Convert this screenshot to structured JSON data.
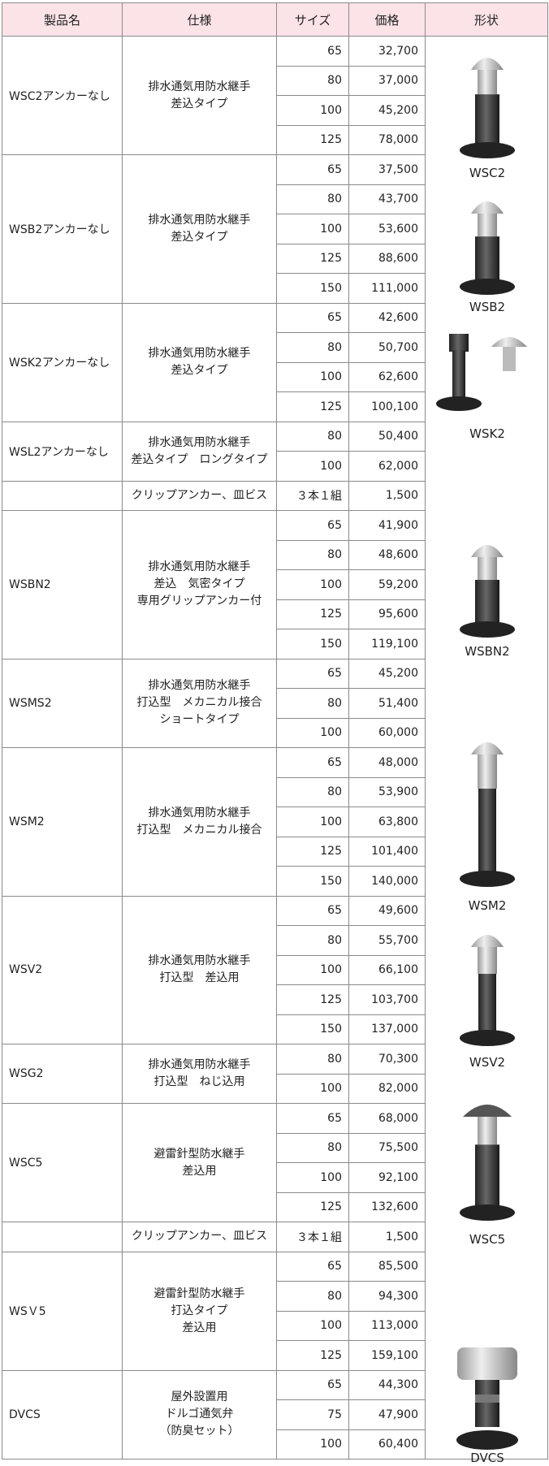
{
  "header": [
    "製品名",
    "仕様",
    "サイズ",
    "価格",
    "形状"
  ],
  "groups": [
    {
      "name": "WSC2アンカーなし",
      "spec": [
        "排水通気用防水継手",
        "差込タイプ"
      ],
      "rows": [
        [
          "65",
          "32,700"
        ],
        [
          "80",
          "37,000"
        ],
        [
          "100",
          "45,200"
        ],
        [
          "125",
          "78,000"
        ]
      ]
    },
    {
      "name": "WSB2アンカーなし",
      "spec": [
        "排水通気用防水継手",
        "差込タイプ"
      ],
      "rows": [
        [
          "65",
          "37,500"
        ],
        [
          "80",
          "43,700"
        ],
        [
          "100",
          "53,600"
        ],
        [
          "125",
          "88,600"
        ],
        [
          "150",
          "111,000"
        ]
      ]
    },
    {
      "name": "WSK2アンカーなし",
      "spec": [
        "排水通気用防水継手",
        "差込タイプ"
      ],
      "rows": [
        [
          "65",
          "42,600"
        ],
        [
          "80",
          "50,700"
        ],
        [
          "100",
          "62,600"
        ],
        [
          "125",
          "100,100"
        ]
      ]
    },
    {
      "name": "WSL2アンカーなし",
      "spec": [
        "排水通気用防水継手",
        "差込タイプ　ロングタイプ"
      ],
      "rows": [
        [
          "80",
          "50,400"
        ],
        [
          "100",
          "62,000"
        ]
      ]
    },
    {
      "name": null,
      "spec": [
        "クリップアンカー、皿ビス"
      ],
      "rows": [
        [
          "３本１組",
          "1,500"
        ]
      ]
    },
    {
      "name": "WSBN2",
      "spec": [
        "排水通気用防水継手",
        "差込　気密タイプ",
        "専用グリップアンカー付"
      ],
      "rows": [
        [
          "65",
          "41,900"
        ],
        [
          "80",
          "48,600"
        ],
        [
          "100",
          "59,200"
        ],
        [
          "125",
          "95,600"
        ],
        [
          "150",
          "119,100"
        ]
      ]
    },
    {
      "name": "WSMS2",
      "spec": [
        "排水通気用防水継手",
        "打込型　メカニカル接合",
        "ショートタイプ"
      ],
      "rows": [
        [
          "65",
          "45,200"
        ],
        [
          "80",
          "51,400"
        ],
        [
          "100",
          "60,000"
        ]
      ]
    },
    {
      "name": "WSM2",
      "spec": [
        "排水通気用防水継手",
        "打込型　メカニカル接合"
      ],
      "rows": [
        [
          "65",
          "48,000"
        ],
        [
          "80",
          "53,900"
        ],
        [
          "100",
          "63,800"
        ],
        [
          "125",
          "101,400"
        ],
        [
          "150",
          "140,000"
        ]
      ]
    },
    {
      "name": "WSV2",
      "spec": [
        "排水通気用防水継手",
        "打込型　差込用"
      ],
      "rows": [
        [
          "65",
          "49,600"
        ],
        [
          "80",
          "55,700"
        ],
        [
          "100",
          "66,100"
        ],
        [
          "125",
          "103,700"
        ],
        [
          "150",
          "137,000"
        ]
      ]
    },
    {
      "name": "WSG2",
      "spec": [
        "排水通気用防水継手",
        "打込型　ねじ込用"
      ],
      "rows": [
        [
          "80",
          "70,300"
        ],
        [
          "100",
          "82,000"
        ]
      ]
    },
    {
      "name": "WSC5",
      "spec": [
        "避雷針型防水継手",
        "差込用"
      ],
      "rows": [
        [
          "65",
          "68,000"
        ],
        [
          "80",
          "75,500"
        ],
        [
          "100",
          "92,100"
        ],
        [
          "125",
          "132,600"
        ]
      ]
    },
    {
      "name": null,
      "spec": [
        "クリップアンカー、皿ビス"
      ],
      "rows": [
        [
          "３本１組",
          "1,500"
        ]
      ]
    },
    {
      "name": "WSＶ5",
      "spec": [
        "避雷針型防水継手",
        "打込タイプ",
        "差込用"
      ],
      "rows": [
        [
          "65",
          "85,500"
        ],
        [
          "80",
          "94,300"
        ],
        [
          "100",
          "113,000"
        ],
        [
          "125",
          "159,100"
        ]
      ]
    },
    {
      "name": "DVCS",
      "spec": [
        "屋外設置用",
        "ドルゴ通気弁",
        "（防臭セット）"
      ],
      "rows": [
        [
          "65",
          "44,300"
        ],
        [
          "75",
          "47,900"
        ],
        [
          "100",
          "60,400"
        ]
      ]
    }
  ],
  "shapes": [
    {
      "label": "WSC2"
    },
    {
      "label": "WSB2"
    },
    {
      "label": "WSK2"
    },
    {
      "label": "WSBN2"
    },
    {
      "label": "WSM2"
    },
    {
      "label": "WSV2"
    },
    {
      "label": "WSC5"
    },
    {
      "label": "DVCS"
    }
  ]
}
